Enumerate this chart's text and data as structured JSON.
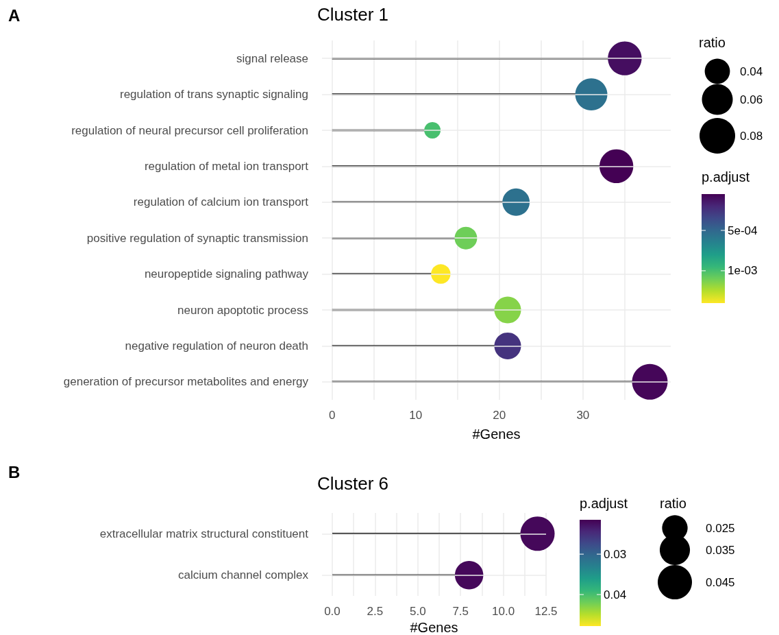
{
  "chart_data": [
    {
      "type": "lollipop",
      "orientation": "horizontal",
      "title": "Cluster 1",
      "xlabel": "#Genes",
      "legend_title": "ratio",
      "clabel": "p.adjust",
      "annotations": [
        "A"
      ],
      "grid": true,
      "marker": "circle",
      "categories": [
        "signal release",
        "regulation of trans synaptic signaling",
        "regulation of neural precursor cell proliferation",
        "regulation of metal ion transport",
        "regulation of calcium ion transport",
        "positive regulation of synaptic transmission",
        "neuropeptide signaling pathway",
        "neuron apoptotic process",
        "negative regulation of neuron death",
        "generation of precursor metabolites and energy"
      ],
      "values": [
        35,
        31,
        12,
        34,
        22,
        16,
        13,
        21,
        21,
        38
      ],
      "sizes": [
        0.072,
        0.065,
        0.017,
        0.072,
        0.047,
        0.032,
        0.024,
        0.045,
        0.045,
        0.08
      ],
      "cvalues": [
        0.0001,
        0.00055,
        0.001,
        5e-05,
        0.00055,
        0.0011,
        0.0014,
        0.00115,
        0.00025,
        7e-05
      ],
      "size_legend": [
        0.04,
        0.06,
        0.08
      ],
      "clim": [
        0.0014,
        5e-05
      ],
      "cticks": [
        {
          "value": 0.0005,
          "label": "5e-04"
        },
        {
          "value": 0.001,
          "label": "1e-03"
        }
      ],
      "xlim": [
        -1.2,
        40.5
      ],
      "xticks": [
        0,
        {
          "value": 5,
          "label": null
        },
        10,
        {
          "value": 15,
          "label": null
        },
        20,
        {
          "value": 25,
          "label": null
        },
        30,
        {
          "value": 35,
          "label": null
        }
      ]
    },
    {
      "type": "lollipop",
      "orientation": "horizontal",
      "title": "Cluster 6",
      "xlabel": "#Genes",
      "legend_title": "ratio",
      "clabel": "p.adjust",
      "annotations": [
        "B"
      ],
      "grid": true,
      "marker": "circle",
      "categories": [
        "extracellular matrix structural constituent",
        "calcium channel complex"
      ],
      "values": [
        12,
        8
      ],
      "sizes": [
        0.045,
        0.031
      ],
      "cvalues": [
        0.022,
        0.022
      ],
      "size_legend": [
        0.025,
        0.035,
        0.045
      ],
      "clim": [
        0.0478,
        0.0215
      ],
      "cticks": [
        {
          "value": 0.03,
          "label": "0.03"
        },
        {
          "value": 0.04,
          "label": "0.04"
        }
      ],
      "xlim": [
        -0.6,
        12.5
      ],
      "xticks": [
        {
          "value": 0,
          "label": "0.0"
        },
        {
          "value": 1.25,
          "label": null
        },
        {
          "value": 2.5,
          "label": "2.5"
        },
        {
          "value": 3.75,
          "label": null
        },
        {
          "value": 5,
          "label": "5.0"
        },
        {
          "value": 6.25,
          "label": null
        },
        {
          "value": 7.5,
          "label": "7.5"
        },
        {
          "value": 8.75,
          "label": null
        },
        {
          "value": 10,
          "label": "10.0"
        },
        {
          "value": 11.25,
          "label": null
        },
        {
          "value": 12.5,
          "label": "12.5"
        }
      ]
    }
  ]
}
